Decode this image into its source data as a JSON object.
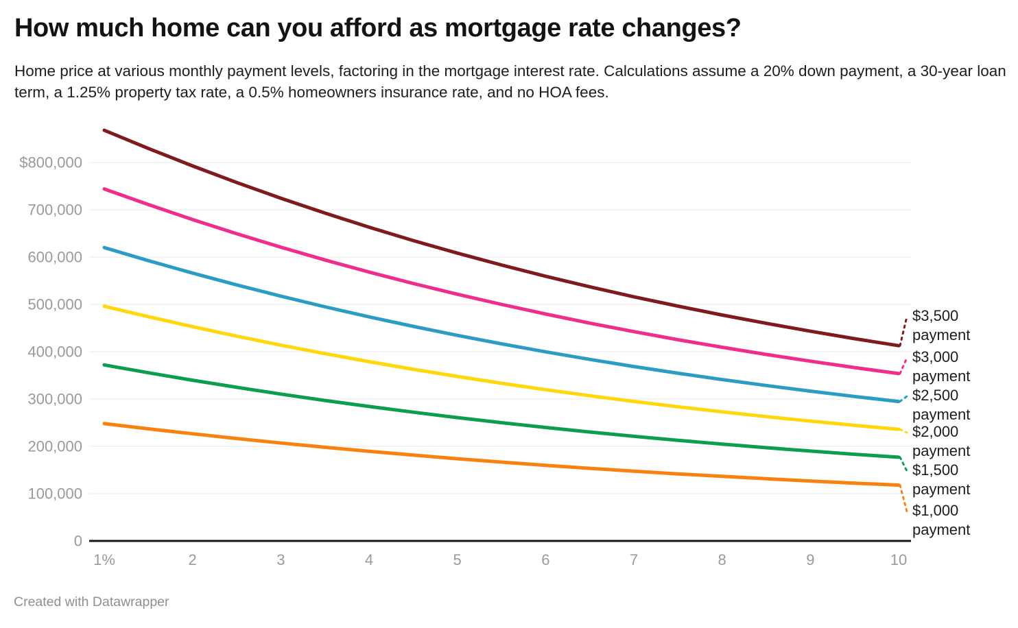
{
  "header": {
    "title": "How much home can you afford as mortgage rate changes?",
    "subtitle": "Home price at various monthly payment levels, factoring in the mortgage interest rate. Calculations assume a 20% down payment, a 30-year loan term, a 1.25% property tax rate, a 0.5% homeowners insurance rate, and no HOA fees."
  },
  "footer": {
    "text": "Created with Datawrapper"
  },
  "palette": {
    "grid": "#e8e8e8",
    "axis": "#161616",
    "tick_text": "#9a9a9a",
    "label_text": "#1d1d1d"
  },
  "chart_data": {
    "type": "line",
    "title": "How much home can you afford as mortgage rate changes?",
    "xlabel": "",
    "ylabel": "",
    "xlim": [
      1,
      10
    ],
    "ylim": [
      0,
      870000
    ],
    "grid": "horizontal",
    "legend_position": "right-edge-labels",
    "x": [
      1,
      1.5,
      2,
      2.5,
      3,
      3.5,
      4,
      4.5,
      5,
      5.5,
      6,
      6.5,
      7,
      7.5,
      8,
      8.5,
      9,
      9.5,
      10
    ],
    "x_ticks": [
      {
        "value": 1,
        "label": "1%"
      },
      {
        "value": 2,
        "label": "2"
      },
      {
        "value": 3,
        "label": "3"
      },
      {
        "value": 4,
        "label": "4"
      },
      {
        "value": 5,
        "label": "5"
      },
      {
        "value": 6,
        "label": "6"
      },
      {
        "value": 7,
        "label": "7"
      },
      {
        "value": 8,
        "label": "8"
      },
      {
        "value": 9,
        "label": "9"
      },
      {
        "value": 10,
        "label": "10"
      }
    ],
    "y_ticks": [
      {
        "value": 800000,
        "label": "$800,000"
      },
      {
        "value": 700000,
        "label": "700,000"
      },
      {
        "value": 600000,
        "label": "600,000"
      },
      {
        "value": 500000,
        "label": "500,000"
      },
      {
        "value": 400000,
        "label": "400,000"
      },
      {
        "value": 300000,
        "label": "300,000"
      },
      {
        "value": 200000,
        "label": "200,000"
      },
      {
        "value": 100000,
        "label": "100,000"
      },
      {
        "value": 0,
        "label": "0"
      }
    ],
    "series": [
      {
        "id": "3500",
        "name": "$3,500 payment",
        "label_line1": "$3,500",
        "label_line2": "payment",
        "color": "#7f1a1e",
        "values": [
          868127,
          829524,
          792729,
          757693,
          724457,
          692981,
          663168,
          634988,
          608382,
          583263,
          559578,
          537240,
          516156,
          496312,
          477595,
          459945,
          443298,
          427601,
          412789
        ]
      },
      {
        "id": "3000",
        "name": "$3,000 payment",
        "label_line1": "$3,000",
        "label_line2": "payment",
        "color": "#ee2d8c",
        "values": [
          744109,
          711021,
          679482,
          649451,
          620963,
          593984,
          568430,
          544275,
          521470,
          499940,
          479638,
          460491,
          442419,
          425410,
          409367,
          394239,
          379970,
          366515,
          353819
        ]
      },
      {
        "id": "2500",
        "name": "$2,500 payment",
        "label_line1": "$2,500",
        "label_line2": "payment",
        "color": "#2b9cc4",
        "values": [
          620091,
          592517,
          566235,
          541209,
          517469,
          494986,
          473691,
          453563,
          434559,
          416616,
          399698,
          383743,
          368683,
          354509,
          341139,
          328532,
          316641,
          305429,
          294849
        ]
      },
      {
        "id": "2000",
        "name": "$2,000 payment",
        "label_line1": "$2,000",
        "label_line2": "payment",
        "color": "#ffd70a",
        "values": [
          496073,
          474014,
          452988,
          432967,
          413975,
          395989,
          378953,
          362850,
          347647,
          333293,
          319759,
          306994,
          294946,
          283607,
          272911,
          262826,
          253313,
          244343,
          235880
        ]
      },
      {
        "id": "1500",
        "name": "$1,500 payment",
        "label_line1": "$1,500",
        "label_line2": "payment",
        "color": "#0c9e4f",
        "values": [
          372054,
          355510,
          339741,
          324726,
          310481,
          296992,
          284214,
          272138,
          260735,
          249970,
          239819,
          230246,
          221210,
          212705,
          204683,
          197119,
          189985,
          183258,
          176910
        ]
      },
      {
        "id": "1000",
        "name": "$1,000 payment",
        "label_line1": "$1,000",
        "label_line2": "payment",
        "color": "#f8820f",
        "values": [
          248036,
          237007,
          226494,
          216484,
          206988,
          197994,
          189476,
          181425,
          173824,
          166647,
          159879,
          153497,
          147473,
          141804,
          136455,
          131413,
          126656,
          122172,
          117940
        ]
      }
    ]
  }
}
